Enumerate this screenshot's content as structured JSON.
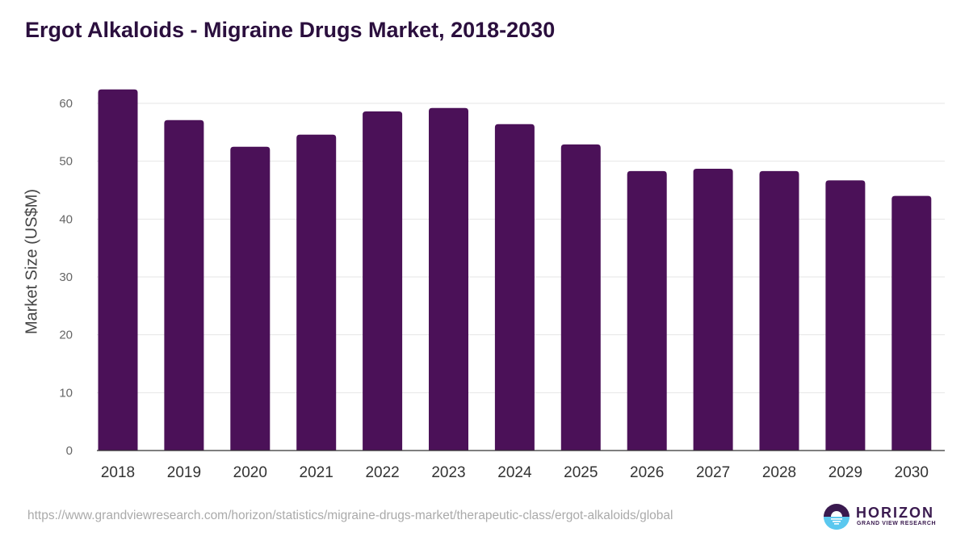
{
  "chart_data": {
    "type": "bar",
    "title": "Ergot Alkaloids - Migraine Drugs Market, 2018-2030",
    "xlabel": "",
    "ylabel": "Market Size (US$M)",
    "ylim": [
      0,
      60
    ],
    "yticks": [
      0,
      10,
      20,
      30,
      40,
      50,
      60
    ],
    "grid": true,
    "categories": [
      "2018",
      "2019",
      "2020",
      "2021",
      "2022",
      "2023",
      "2024",
      "2025",
      "2026",
      "2027",
      "2028",
      "2029",
      "2030"
    ],
    "values": [
      62.4,
      57.1,
      52.5,
      54.6,
      58.6,
      59.2,
      56.4,
      52.9,
      48.3,
      48.7,
      48.3,
      46.7,
      44.0
    ],
    "bar_color": "#4b1158"
  },
  "footer": {
    "source_url": "https://www.grandviewresearch.com/horizon/statistics/migraine-drugs-market/therapeutic-class/ergot-alkaloids/global",
    "logo_name": "HORIZON",
    "logo_sub": "GRAND VIEW RESEARCH"
  }
}
